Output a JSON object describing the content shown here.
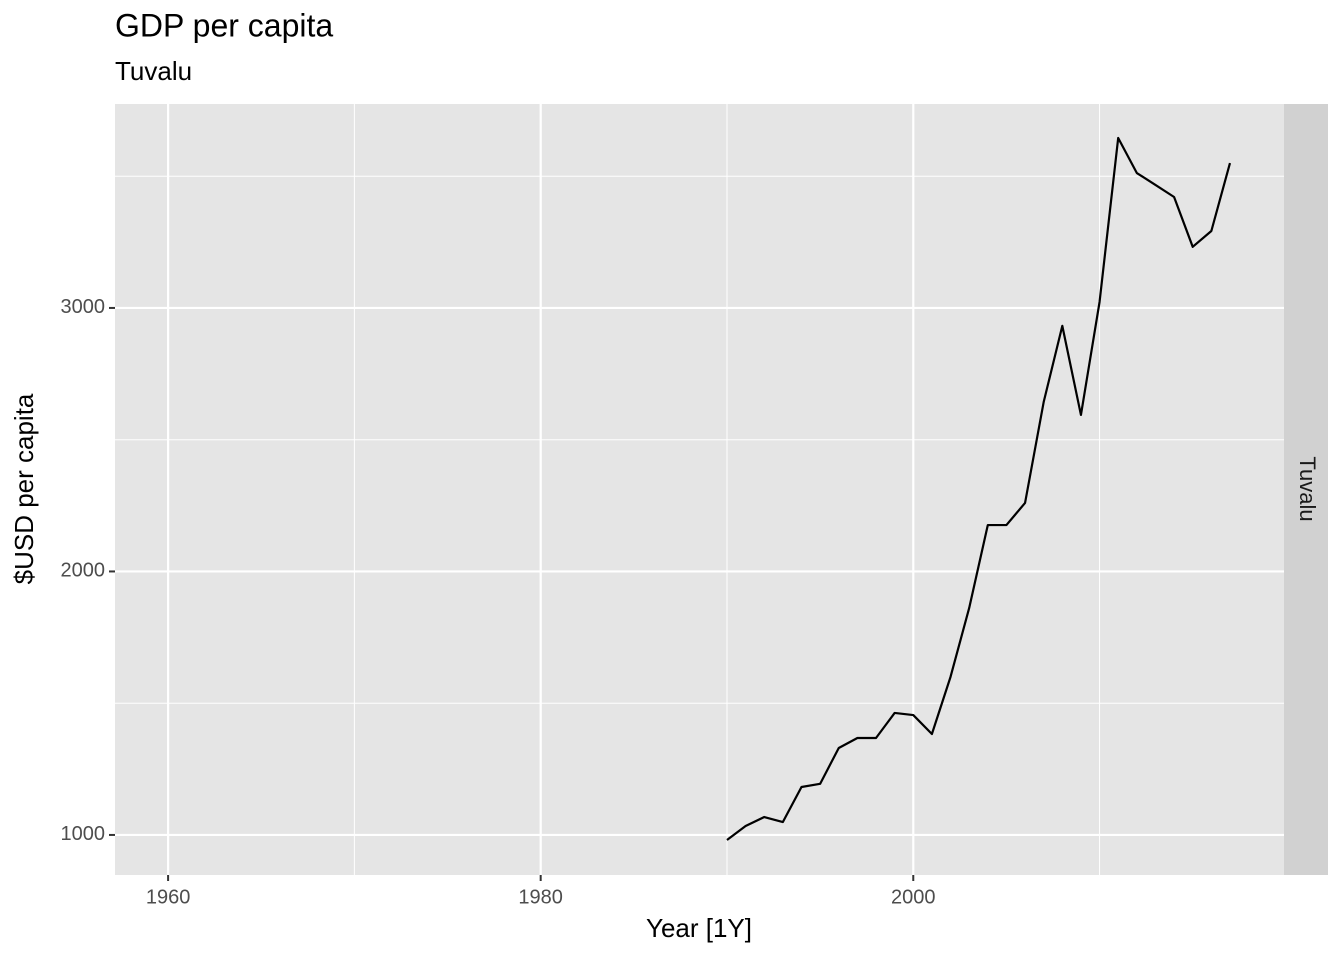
{
  "chart_data": {
    "type": "line",
    "title": "GDP per capita",
    "subtitle": "Tuvalu",
    "facet": "Tuvalu",
    "x_label": "Year [1Y]",
    "y_label": "$USD per capita",
    "x": [
      1990,
      1991,
      1992,
      1993,
      1994,
      1995,
      1996,
      1997,
      1998,
      1999,
      2000,
      2001,
      2002,
      2003,
      2004,
      2005,
      2006,
      2007,
      2008,
      2009,
      2010,
      2011,
      2012,
      2013,
      2014,
      2015,
      2016,
      2017
    ],
    "series": [
      {
        "name": "Tuvalu",
        "color": "#000000",
        "values": [
          981,
          1034,
          1068,
          1049,
          1182,
          1194,
          1330,
          1368,
          1368,
          1463,
          1455,
          1383,
          1600,
          1861,
          2176,
          2176,
          2260,
          2643,
          2932,
          2594,
          3023,
          3645,
          3512,
          3467,
          3421,
          3232,
          3292,
          3550
        ]
      }
    ],
    "xlim": [
      1957.15,
      2019.9
    ],
    "ylim": [
      848,
      3774
    ],
    "xticks": [
      1960,
      1980,
      2000
    ],
    "yticks": [
      1000,
      2000,
      3000
    ],
    "minor_xticks": [
      1970,
      1990,
      2010
    ],
    "minor_yticks": [
      1500,
      2500,
      3500
    ],
    "grid": true
  }
}
